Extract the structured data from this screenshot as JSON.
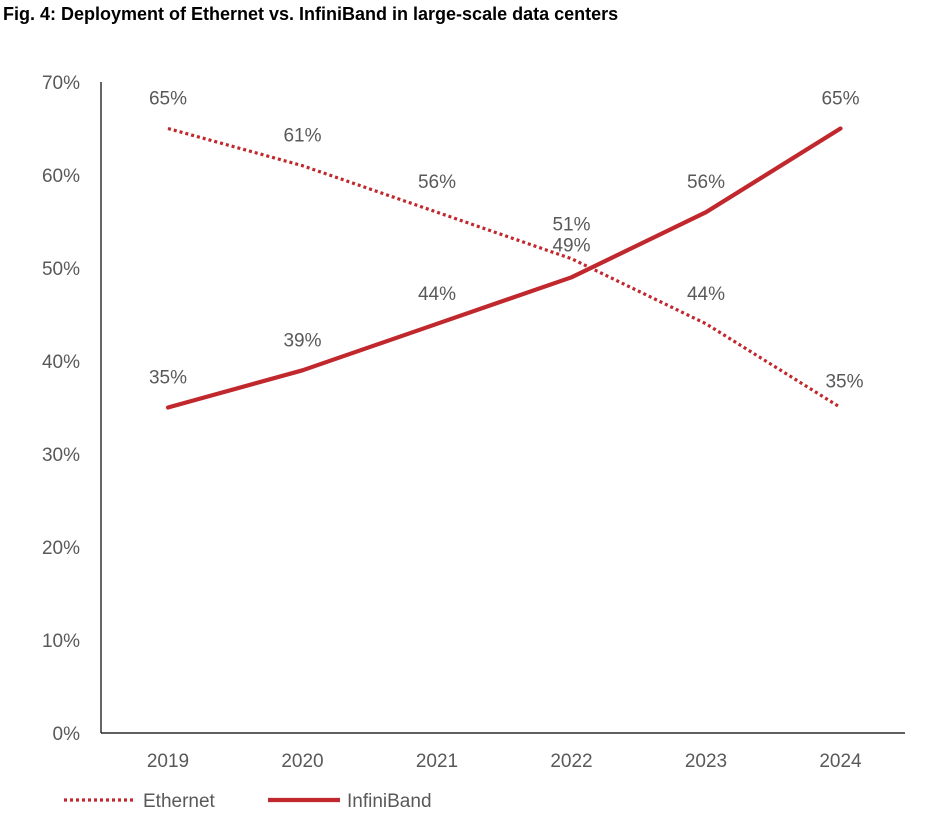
{
  "chart_data": {
    "type": "line",
    "title": "Fig. 4: Deployment of Ethernet vs. InfiniBand in large-scale data centers",
    "xlabel": "",
    "ylabel": "",
    "categories": [
      "2019",
      "2020",
      "2021",
      "2022",
      "2023",
      "2024"
    ],
    "ylim": [
      0,
      70
    ],
    "yticks": [
      0,
      10,
      20,
      30,
      40,
      50,
      60,
      70
    ],
    "ytick_labels": [
      "0%",
      "10%",
      "20%",
      "30%",
      "40%",
      "50%",
      "60%",
      "70%"
    ],
    "grid": false,
    "legend_position": "bottom-left",
    "series": [
      {
        "name": "Ethernet",
        "style": "dotted",
        "color": "#C0282D",
        "values": [
          65,
          61,
          56,
          51,
          44,
          35
        ],
        "labels": [
          "65%",
          "61%",
          "56%",
          "51%",
          "44%",
          "35%"
        ]
      },
      {
        "name": "InfiniBand",
        "style": "solid",
        "color": "#C0282D",
        "values": [
          35,
          39,
          44,
          49,
          56,
          65
        ],
        "labels": [
          "35%",
          "39%",
          "44%",
          "49%",
          "56%",
          "65%"
        ]
      }
    ]
  }
}
